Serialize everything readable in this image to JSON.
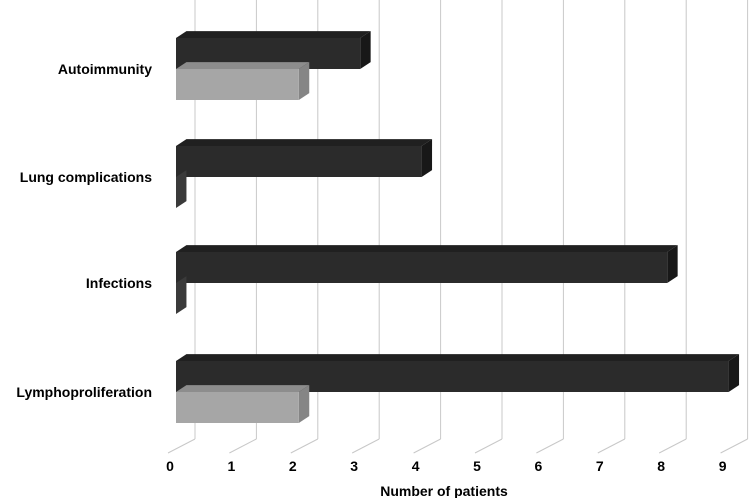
{
  "chart_data": {
    "type": "bar",
    "orientation": "horizontal",
    "style": "3d",
    "categories": [
      "Autoimmunity",
      "Lung complications",
      "Infections",
      "Lymphoproliferation"
    ],
    "series": [
      {
        "values": [
          3,
          4,
          8,
          9
        ],
        "color": "#2b2b2b"
      },
      {
        "values": [
          2,
          0,
          0,
          2
        ],
        "color": "#a6a6a6"
      }
    ],
    "xlabel": "Number of patients",
    "xlim": [
      0,
      9
    ],
    "xticks": [
      0,
      1,
      2,
      3,
      4,
      5,
      6,
      7,
      8,
      9
    ],
    "grid": true,
    "legend": false
  }
}
